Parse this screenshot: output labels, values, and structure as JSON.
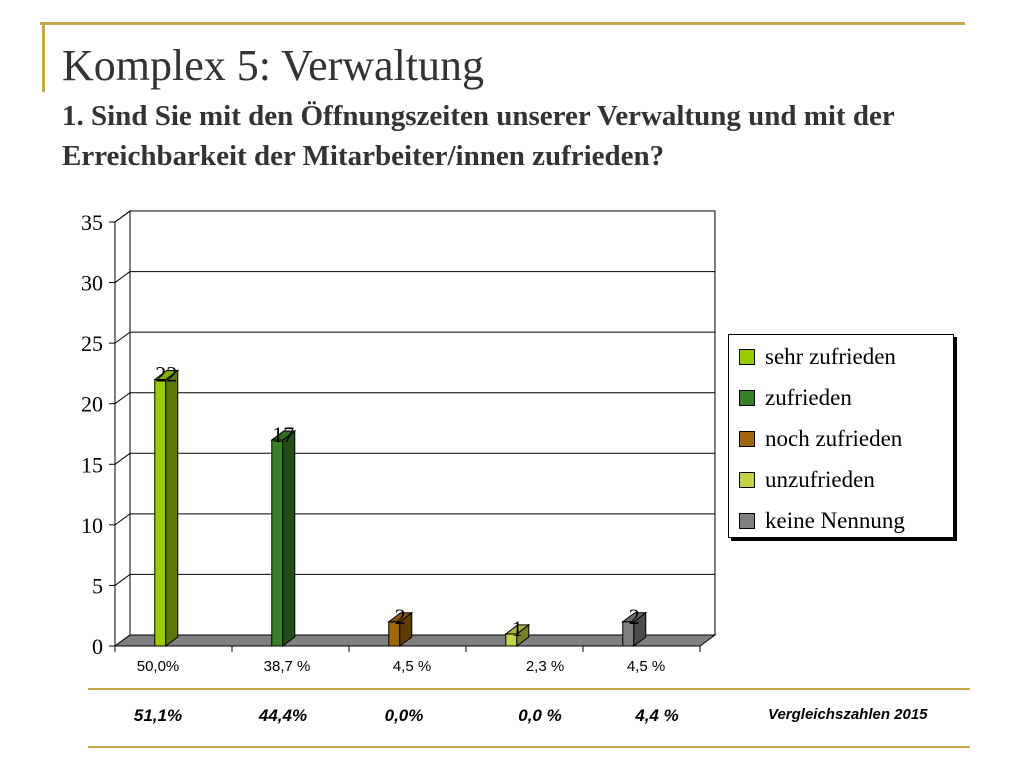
{
  "title": "Komplex 5: Verwaltung",
  "subtitle": "1. Sind Sie mit den Öffnungszeiten unserer Verwaltung und mit der Erreichbarkeit der Mitarbeiter/innen zufrieden?",
  "chart_data": {
    "type": "bar",
    "categories": [
      "sehr zufrieden",
      "zufrieden",
      "noch zufrieden",
      "unzufrieden",
      "keine Nennung"
    ],
    "values": [
      22,
      17,
      2,
      1,
      2
    ],
    "data_labels": [
      "22",
      "17",
      "2",
      "1",
      "2"
    ],
    "ylim": [
      0,
      35
    ],
    "yticks": [
      "0",
      "5",
      "10",
      "15",
      "20",
      "25",
      "30",
      "35"
    ],
    "grid": true,
    "legend_position": "right",
    "colors": [
      "#99cc00",
      "#3a7f2a",
      "#a0660a",
      "#c4d24a",
      "#7f7f7f"
    ],
    "percentages": [
      "50,0%",
      "38,7 %",
      "4,5 %",
      "2,3 %",
      "4,5 %"
    ],
    "comparison": {
      "label": "Vergleichszahlen 2015",
      "values": [
        "51,1%",
        "44,4%",
        "0,0%",
        "0,0 %",
        "4,4 %"
      ]
    }
  }
}
